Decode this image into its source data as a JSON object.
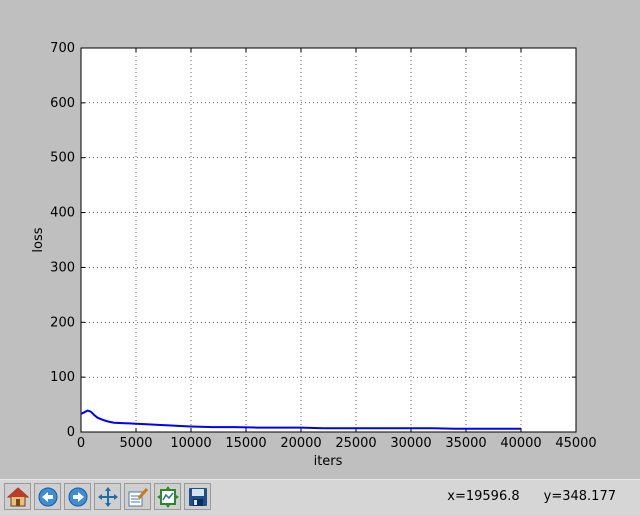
{
  "figure": {
    "background": "#bfbfbf",
    "axes_background": "#ffffff",
    "line_color": "#0000ff"
  },
  "toolbar": {
    "buttons": [
      {
        "name": "home-button",
        "icon": "home-icon"
      },
      {
        "name": "back-button",
        "icon": "back-arrow-icon"
      },
      {
        "name": "forward-button",
        "icon": "forward-arrow-icon"
      },
      {
        "name": "pan-button",
        "icon": "pan-move-icon"
      },
      {
        "name": "zoom-button",
        "icon": "zoom-rect-icon"
      },
      {
        "name": "subplots-button",
        "icon": "subplots-config-icon"
      },
      {
        "name": "save-button",
        "icon": "floppy-disk-icon"
      }
    ],
    "coord_x": "x=19596.8",
    "coord_y": "y=348.177"
  },
  "chart_data": {
    "type": "line",
    "title": "",
    "xlabel": "iters",
    "ylabel": "loss",
    "xlim": [
      0,
      45000
    ],
    "ylim": [
      0,
      700
    ],
    "xticks": [
      0,
      5000,
      10000,
      15000,
      20000,
      25000,
      30000,
      35000,
      40000,
      45000
    ],
    "yticks": [
      0,
      100,
      200,
      300,
      400,
      500,
      600,
      700
    ],
    "grid": true,
    "series": [
      {
        "x": [
          0,
          300,
          600,
          900,
          1200,
          1500,
          2000,
          2500,
          3000,
          4000,
          5000,
          6000,
          7000,
          8000,
          9000,
          10000,
          12000,
          14000,
          16000,
          18000,
          20000,
          22000,
          24000,
          26000,
          28000,
          30000,
          32000,
          34000,
          36000,
          38000,
          40000
        ],
        "y": [
          33,
          36,
          39,
          37,
          31,
          26,
          22,
          19,
          17,
          16,
          15,
          14,
          13,
          12,
          11,
          10,
          9,
          9,
          8,
          8,
          8,
          7,
          7,
          7,
          7,
          7,
          7,
          6,
          6,
          6,
          6
        ]
      }
    ]
  }
}
